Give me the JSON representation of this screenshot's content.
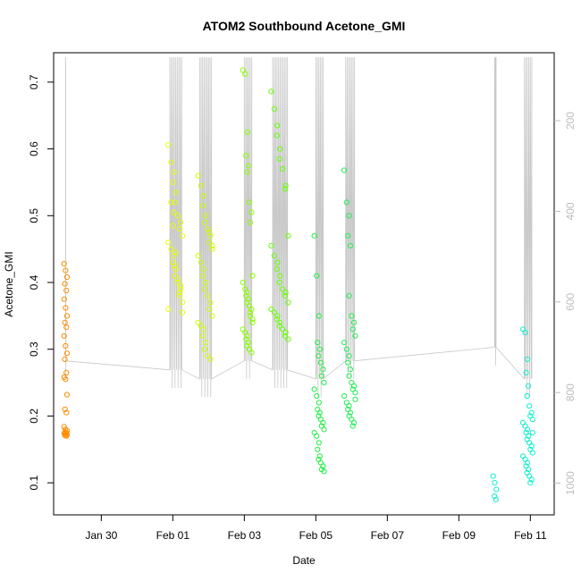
{
  "chart_data": {
    "type": "scatter",
    "title": "ATOM2 Southbound Acetone_GMI",
    "xlabel": "Date",
    "ylabel": "Acetone_GMI",
    "xlim": [
      "2017-01-28T16:00",
      "2017-02-11T16:00"
    ],
    "ylim": [
      0.052,
      0.744
    ],
    "x_ticks": [
      "2017-01-30",
      "2017-02-01",
      "2017-02-03",
      "2017-02-05",
      "2017-02-07",
      "2017-02-09",
      "2017-02-11"
    ],
    "x_tick_labels": [
      "Jan 30",
      "Feb 01",
      "Feb 03",
      "Feb 05",
      "Feb 07",
      "Feb 09",
      "Feb 11"
    ],
    "y_ticks": [
      0.1,
      0.2,
      0.3,
      0.4,
      0.5,
      0.6,
      0.7
    ],
    "y_tick_labels": [
      "0.1",
      "0.2",
      "0.3",
      "0.4",
      "0.5",
      "0.6",
      "0.7"
    ],
    "secondary_y": {
      "reversed": true,
      "lim": [
        50,
        1070
      ],
      "ticks": [
        200,
        400,
        600,
        800,
        1000
      ],
      "tick_labels": [
        "200",
        "400",
        "600",
        "800",
        "1000"
      ],
      "color": "#bdbdbd"
    },
    "grid": false,
    "color_by_date": true,
    "series": [
      {
        "flight": 1,
        "color": "#ff8c00",
        "start": "2017-01-29T00:00",
        "end": "2017-01-29T00:05",
        "values": [
          0.428,
          0.418,
          0.408,
          0.398,
          0.388,
          0.375,
          0.362,
          0.35,
          0.34,
          0.333,
          0.32,
          0.305,
          0.294,
          0.285,
          0.265,
          0.258,
          0.255,
          0.232,
          0.21,
          0.205,
          0.184,
          0.18,
          0.178,
          0.176,
          0.175,
          0.174,
          0.173,
          0.172,
          0.171,
          0.17
        ]
      },
      {
        "flight": 2,
        "color": "#e6ff00",
        "start": "2017-01-31T22:00",
        "end": "2017-02-01T06:00",
        "values": [
          0.606,
          0.58,
          0.565,
          0.55,
          0.535,
          0.52,
          0.5,
          0.49,
          0.48,
          0.47,
          0.46,
          0.45,
          0.44,
          0.43,
          0.42,
          0.41,
          0.4,
          0.39,
          0.38,
          0.37,
          0.36,
          0.52,
          0.505,
          0.485,
          0.445,
          0.425,
          0.405,
          0.395,
          0.385,
          0.355
        ]
      },
      {
        "flight": 3,
        "color": "#ccff00",
        "start": "2017-02-01T18:00",
        "end": "2017-02-02T02:00",
        "values": [
          0.56,
          0.545,
          0.53,
          0.515,
          0.5,
          0.49,
          0.48,
          0.47,
          0.46,
          0.45,
          0.44,
          0.43,
          0.42,
          0.41,
          0.4,
          0.39,
          0.38,
          0.37,
          0.36,
          0.35,
          0.34,
          0.335,
          0.33,
          0.32,
          0.31,
          0.3,
          0.29,
          0.285,
          0.475,
          0.455
        ]
      },
      {
        "flight": 4,
        "color": "#88ff00",
        "start": "2017-02-03T00:00",
        "end": "2017-02-03T05:00",
        "values": [
          0.718,
          0.712,
          0.625,
          0.59,
          0.575,
          0.565,
          0.52,
          0.505,
          0.49,
          0.41,
          0.4,
          0.39,
          0.385,
          0.38,
          0.375,
          0.37,
          0.365,
          0.36,
          0.35,
          0.34,
          0.33,
          0.325,
          0.32,
          0.315,
          0.31,
          0.305,
          0.3,
          0.295,
          0.355,
          0.345
        ]
      },
      {
        "flight": 5,
        "color": "#66ff00",
        "start": "2017-02-03T19:00",
        "end": "2017-02-04T05:00",
        "values": [
          0.686,
          0.66,
          0.635,
          0.62,
          0.6,
          0.585,
          0.57,
          0.545,
          0.54,
          0.47,
          0.455,
          0.44,
          0.43,
          0.42,
          0.41,
          0.4,
          0.39,
          0.385,
          0.38,
          0.37,
          0.36,
          0.355,
          0.35,
          0.345,
          0.34,
          0.335,
          0.33,
          0.325,
          0.32,
          0.315
        ]
      },
      {
        "flight": 6,
        "color": "#22ee44",
        "start": "2017-02-05T00:00",
        "end": "2017-02-05T05:00",
        "values": [
          0.47,
          0.41,
          0.35,
          0.31,
          0.3,
          0.29,
          0.28,
          0.27,
          0.26,
          0.25,
          0.24,
          0.23,
          0.22,
          0.21,
          0.205,
          0.2,
          0.195,
          0.19,
          0.185,
          0.18,
          0.175,
          0.17,
          0.16,
          0.15,
          0.14,
          0.135,
          0.13,
          0.125,
          0.12,
          0.117
        ]
      },
      {
        "flight": 7,
        "color": "#22ee55",
        "start": "2017-02-05T20:00",
        "end": "2017-02-06T02:00",
        "values": [
          0.568,
          0.52,
          0.5,
          0.47,
          0.455,
          0.38,
          0.35,
          0.34,
          0.33,
          0.32,
          0.31,
          0.3,
          0.29,
          0.28,
          0.27,
          0.26,
          0.25,
          0.245,
          0.24,
          0.235,
          0.23,
          0.22,
          0.215,
          0.21,
          0.205,
          0.2,
          0.195,
          0.19,
          0.185,
          0.225
        ]
      },
      {
        "flight": 8,
        "color": "#11eecc",
        "start": "2017-02-10T00:00",
        "end": "2017-02-10T01:00",
        "values": [
          0.11,
          0.1,
          0.09,
          0.08,
          0.075
        ]
      },
      {
        "flight": 9,
        "color": "#11eecc",
        "start": "2017-02-10T20:00",
        "end": "2017-02-11T01:00",
        "values": [
          0.33,
          0.325,
          0.285,
          0.265,
          0.245,
          0.23,
          0.215,
          0.205,
          0.2,
          0.195,
          0.19,
          0.185,
          0.18,
          0.175,
          0.17,
          0.165,
          0.16,
          0.155,
          0.15,
          0.145,
          0.14,
          0.135,
          0.13,
          0.125,
          0.12,
          0.115,
          0.11,
          0.105,
          0.1,
          0.175
        ]
      }
    ],
    "pressure_trace": {
      "color": "#c8c8c8",
      "note": "Aircraft altitude (pressure, hPa) trace on the secondary axis"
    }
  }
}
